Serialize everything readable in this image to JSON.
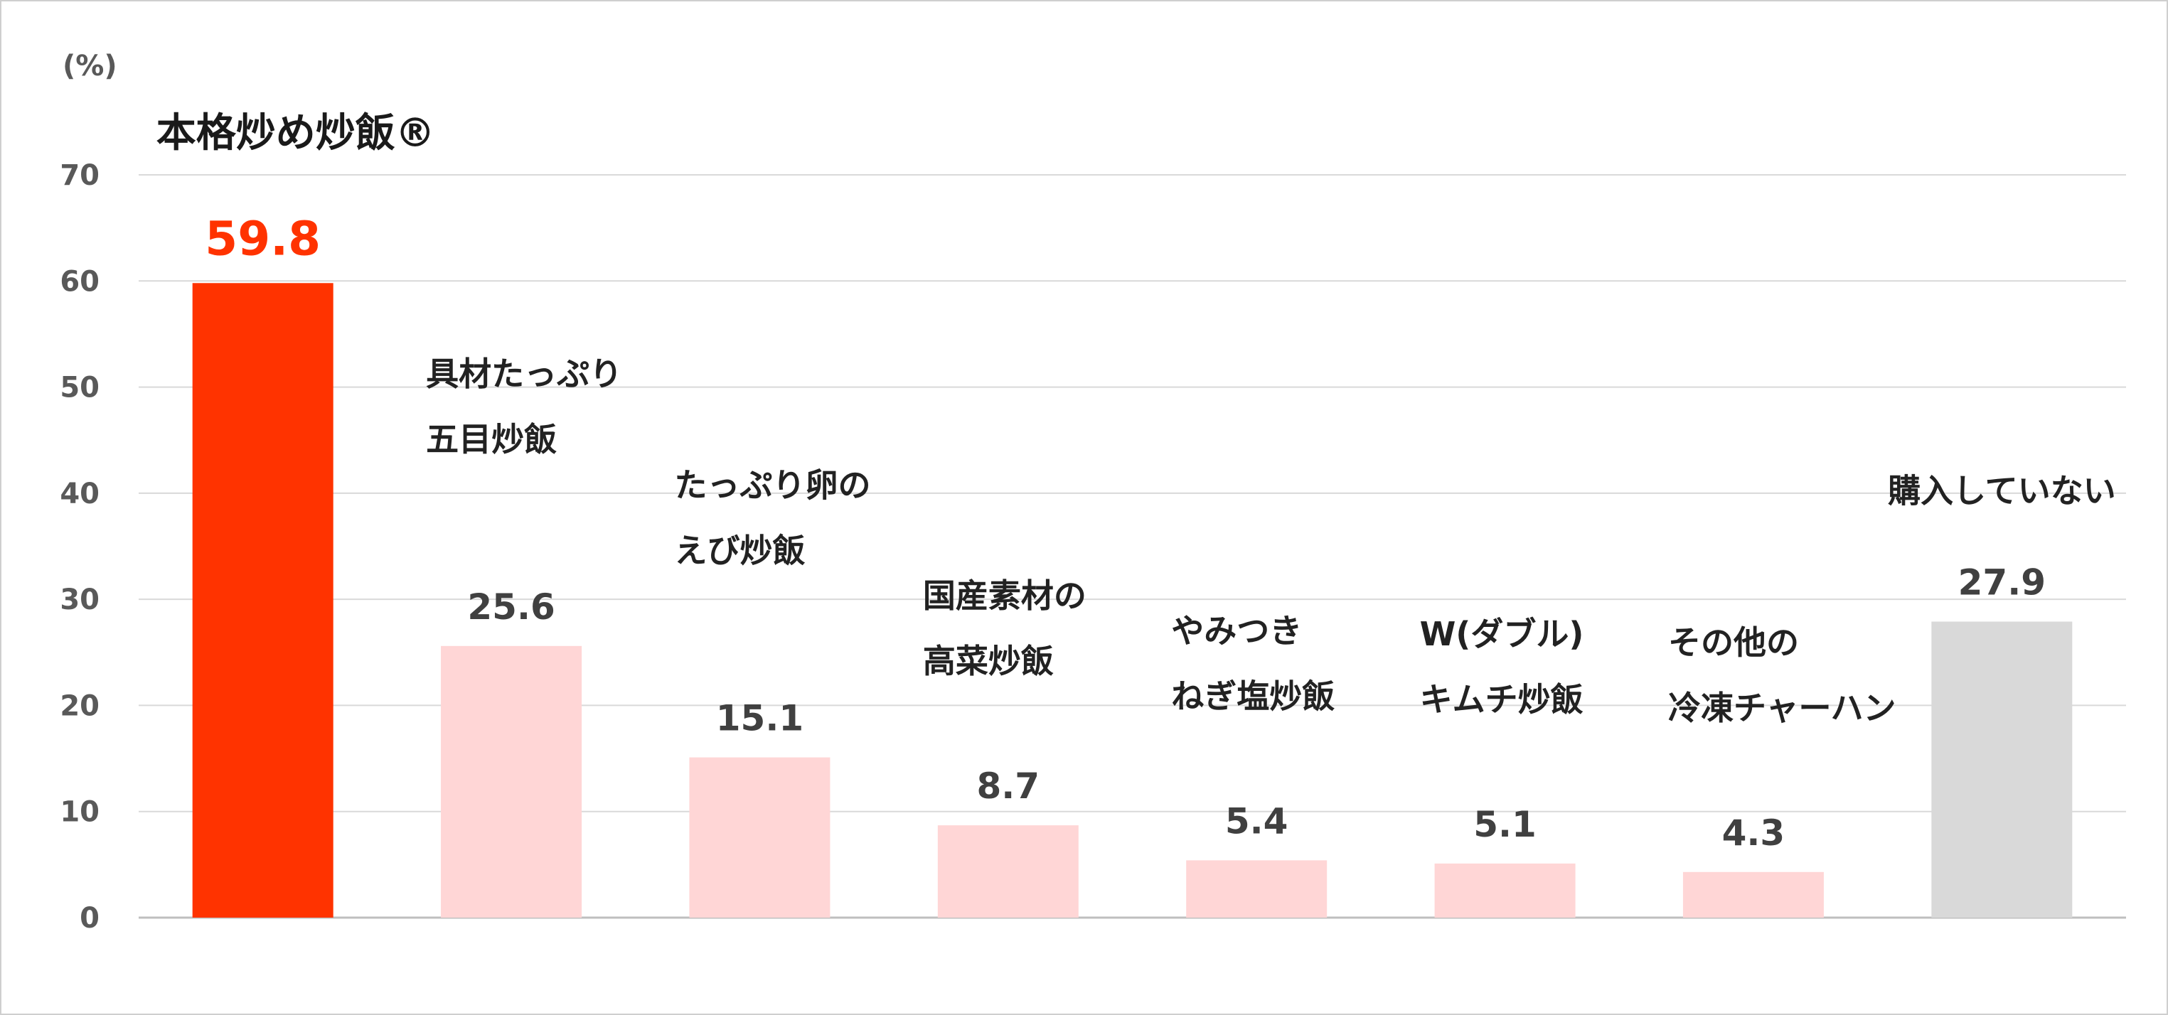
{
  "chart_data": {
    "type": "bar",
    "ylabel": "(%)",
    "ylim": [
      0,
      70
    ],
    "yticks": [
      0,
      10,
      20,
      30,
      40,
      50,
      60,
      70
    ],
    "grid": true,
    "bars": [
      {
        "lines": [
          "本格炒め炒飯®"
        ],
        "value": 59.8,
        "value_text": "59.8",
        "color": "#ff3300",
        "highlight": true
      },
      {
        "lines": [
          "具材たっぷり",
          "五目炒飯"
        ],
        "value": 25.6,
        "value_text": "25.6",
        "color": "#ffd6d6",
        "highlight": false
      },
      {
        "lines": [
          "たっぷり卵の",
          "えび炒飯"
        ],
        "value": 15.1,
        "value_text": "15.1",
        "color": "#ffd6d6",
        "highlight": false
      },
      {
        "lines": [
          "国産素材の",
          "高菜炒飯"
        ],
        "value": 8.7,
        "value_text": "8.7",
        "color": "#ffd6d6",
        "highlight": false
      },
      {
        "lines": [
          "やみつき",
          "ねぎ塩炒飯"
        ],
        "value": 5.4,
        "value_text": "5.4",
        "color": "#ffd6d6",
        "highlight": false
      },
      {
        "lines": [
          "W(ダブル)",
          "キムチ炒飯"
        ],
        "value": 5.1,
        "value_text": "5.1",
        "color": "#ffd6d6",
        "highlight": false
      },
      {
        "lines": [
          "その他の",
          "冷凍チャーハン"
        ],
        "value": 4.3,
        "value_text": "4.3",
        "color": "#ffd6d6",
        "highlight": false
      },
      {
        "lines": [
          "購入していない"
        ],
        "value": 27.9,
        "value_text": "27.9",
        "color": "#d9d9d9",
        "highlight": false
      }
    ],
    "colors": {
      "grid": "#d9d9d9",
      "axis": "#bfbfbf"
    }
  }
}
